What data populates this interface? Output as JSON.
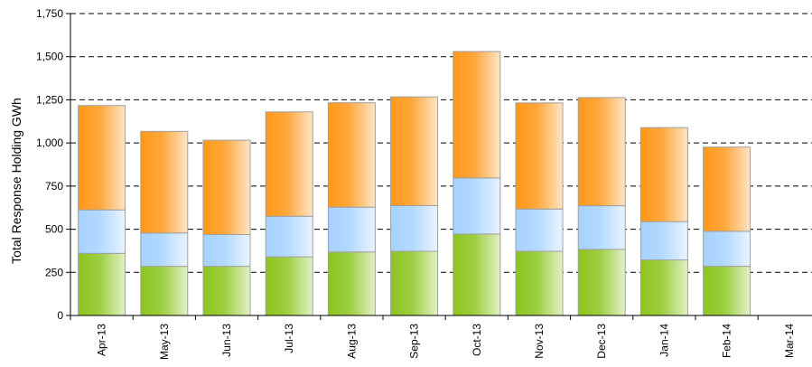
{
  "chart_data": {
    "type": "bar",
    "stacked": true,
    "title": "",
    "xlabel": "",
    "ylabel": "Total Response Holding GWh",
    "ylim": [
      0,
      1750
    ],
    "yticks": [
      0,
      250,
      500,
      750,
      1000,
      1250,
      1500,
      1750
    ],
    "ytick_labels": [
      "0",
      "250",
      "500",
      "750",
      "1,000",
      "1,250",
      "1,500",
      "1,750"
    ],
    "grid": "horizontal dashed",
    "legend": "none",
    "categories": [
      "Apr-13",
      "May-13",
      "Jun-13",
      "Jul-13",
      "Aug-13",
      "Sep-13",
      "Oct-13",
      "Nov-13",
      "Dec-13",
      "Jan-14",
      "Feb-14",
      "Mar-14"
    ],
    "series": [
      {
        "color": "#8cc51e",
        "values": [
          360,
          285,
          285,
          340,
          368,
          372,
          472,
          372,
          383,
          322,
          285,
          0
        ]
      },
      {
        "color": "#a6d2ff",
        "values": [
          252,
          193,
          184,
          235,
          260,
          265,
          325,
          245,
          253,
          222,
          203,
          0
        ]
      },
      {
        "color": "#ff9819",
        "values": [
          605,
          589,
          547,
          605,
          605,
          630,
          733,
          615,
          627,
          545,
          488,
          0
        ]
      }
    ]
  }
}
